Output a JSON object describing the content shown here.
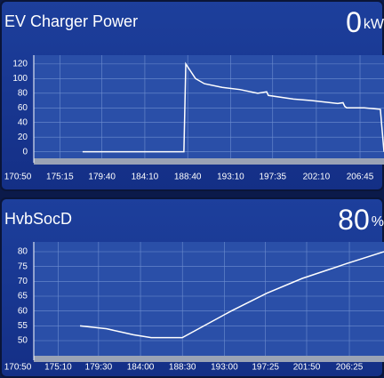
{
  "chart_data": [
    {
      "type": "line",
      "title": "EV Charger Power",
      "current_value": 0,
      "current_unit": "kW",
      "color": "#ffffff",
      "x": [
        10658,
        11296,
        11308,
        11369,
        11425,
        11537,
        11649,
        11761,
        11817,
        11828,
        11985,
        12097,
        12265,
        12298,
        12309,
        12321,
        12432,
        12533,
        12556
      ],
      "values": [
        0,
        0,
        120,
        100,
        93,
        88,
        85,
        80,
        82,
        77,
        72,
        70,
        66,
        67,
        62,
        60,
        60,
        58,
        0
      ],
      "xlim": [
        10250,
        12556
      ],
      "ylim": [
        -15,
        132
      ],
      "grid": true,
      "xticks": [
        {
          "value": 10250,
          "label": "170:50"
        },
        {
          "value": 10515,
          "label": "175:15"
        },
        {
          "value": 10780,
          "label": "179:40"
        },
        {
          "value": 11050,
          "label": "184:10"
        },
        {
          "value": 11320,
          "label": "188:40"
        },
        {
          "value": 11590,
          "label": "193:10"
        },
        {
          "value": 11855,
          "label": "197:35"
        },
        {
          "value": 12130,
          "label": "202:10"
        },
        {
          "value": 12405,
          "label": "206:45"
        }
      ],
      "yticks": [
        0,
        20,
        40,
        60,
        80,
        100,
        120
      ]
    },
    {
      "type": "line",
      "title": "HvbSocD",
      "current_value": 80,
      "current_unit": "%",
      "color": "#ffffff",
      "x": [
        10651,
        10822,
        10908,
        10994,
        11109,
        11309,
        11624,
        11853,
        12082,
        12368,
        12608
      ],
      "values": [
        55,
        54,
        53,
        52,
        51,
        51,
        60,
        66,
        71,
        76,
        80
      ],
      "xlim": [
        10250,
        12608
      ],
      "ylim": [
        43.4,
        83.3
      ],
      "grid": true,
      "xticks": [
        {
          "value": 10250,
          "label": "170:50"
        },
        {
          "value": 10510,
          "label": "175:10"
        },
        {
          "value": 10770,
          "label": "179:30"
        },
        {
          "value": 11040,
          "label": "184:00"
        },
        {
          "value": 11310,
          "label": "188:30"
        },
        {
          "value": 11580,
          "label": "193:00"
        },
        {
          "value": 11845,
          "label": "197:25"
        },
        {
          "value": 12110,
          "label": "201:50"
        },
        {
          "value": 12385,
          "label": "206:25"
        }
      ],
      "yticks": [
        50,
        55,
        60,
        65,
        70,
        75,
        80
      ]
    }
  ]
}
